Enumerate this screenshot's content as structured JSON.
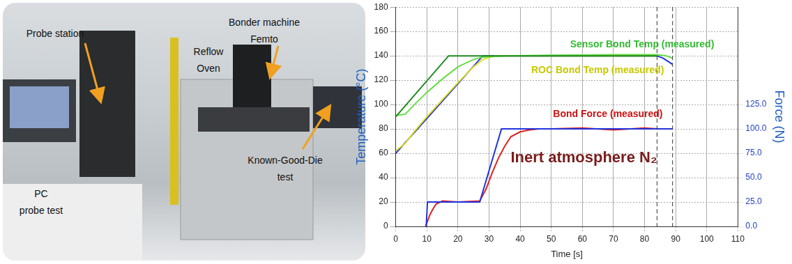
{
  "photo": {
    "labels": [
      {
        "lines": [
          "Probe station"
        ]
      },
      {
        "lines": [
          "Reflow",
          "Oven"
        ]
      },
      {
        "lines": [
          "Bonder machine",
          "Femto"
        ]
      },
      {
        "lines": [
          "PC",
          "probe test"
        ]
      },
      {
        "lines": [
          "Known-Good-Die",
          "test"
        ]
      }
    ]
  },
  "chart_data": {
    "type": "line",
    "x_label": "Time [s]",
    "y_label": "Temperature (°C)",
    "y2_label": "Force (N)",
    "xlim": [
      0,
      110
    ],
    "xticks": [
      0,
      10,
      20,
      30,
      40,
      50,
      60,
      70,
      80,
      90,
      100,
      110
    ],
    "ylim": [
      0,
      180
    ],
    "yticks": [
      0,
      20,
      40,
      60,
      80,
      100,
      120,
      140,
      160,
      180
    ],
    "y2lim": [
      0,
      225
    ],
    "y2ticks": [
      {
        "value": 0,
        "label": "0.0"
      },
      {
        "value": 25,
        "label": "25.0"
      },
      {
        "value": 50,
        "label": "50.0"
      },
      {
        "value": 75,
        "label": "75.0"
      },
      {
        "value": 100,
        "label": "100.0"
      },
      {
        "value": 125,
        "label": "125.0"
      }
    ],
    "grid": true,
    "series": [
      {
        "color": "#1e8c1e",
        "x": [
          0,
          17,
          84
        ],
        "values": [
          90,
          140,
          140
        ]
      },
      {
        "name": "Sensor Bond Temp (measured)",
        "color": "#66dd44",
        "x": [
          0,
          3,
          6,
          10,
          15,
          20,
          25,
          28,
          35,
          50,
          70,
          84,
          87,
          89
        ],
        "values": [
          91,
          92,
          100,
          110,
          121,
          131,
          137,
          139,
          140,
          140.5,
          141,
          141,
          140,
          138
        ]
      },
      {
        "name": "ROC Bond Temp (measured)",
        "color": "#e0e020",
        "x": [
          0,
          3,
          6,
          10,
          15,
          20,
          25,
          28,
          32,
          50,
          84
        ],
        "values": [
          62,
          68,
          78,
          90,
          104,
          118,
          131,
          137,
          140,
          140,
          140
        ]
      },
      {
        "color": "#2233dd",
        "x": [
          0,
          28,
          84,
          86,
          89
        ],
        "values": [
          60,
          140,
          140,
          138,
          133
        ]
      },
      {
        "color": "#2233dd",
        "axis": "y2",
        "x": [
          9.8,
          10.2,
          27,
          34,
          89
        ],
        "values": [
          0,
          25,
          25,
          100,
          100
        ]
      },
      {
        "name": "Bond Force (measured)",
        "color": "#e02020",
        "axis": "y2",
        "x": [
          9.6,
          11,
          12,
          13,
          15,
          20,
          27,
          29,
          31,
          33,
          35,
          37,
          40,
          43,
          46,
          50,
          60,
          70,
          80,
          84
        ],
        "values": [
          0,
          12,
          18,
          23,
          26,
          25,
          26,
          38,
          55,
          70,
          82,
          92,
          97,
          99,
          100,
          100,
          101,
          99,
          101,
          100
        ]
      }
    ],
    "annotations": [
      {
        "text": "Sensor Bond Temp (measured)",
        "color": "#33bb33"
      },
      {
        "text": "ROC Bond Temp (measured)",
        "color": "#c8c800"
      },
      {
        "text": "Bond Force (measured)",
        "color": "#cc1111"
      },
      {
        "text": "Inert atmosphere N₂",
        "color": "#7a1c1c"
      }
    ],
    "vertical_lines": [
      84,
      89
    ]
  }
}
